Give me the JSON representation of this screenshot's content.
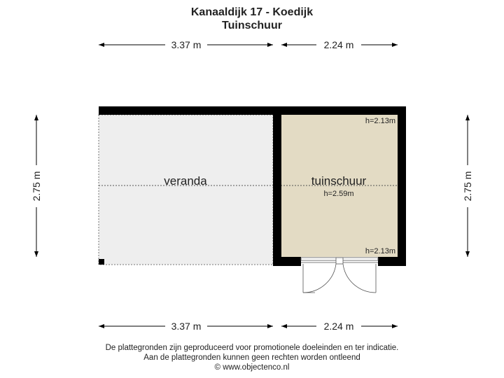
{
  "header": {
    "title": "Kanaaldijk 17 - Koedijk",
    "subtitle": "Tuinschuur"
  },
  "dimensions": {
    "top_left": "3.37 m",
    "top_right": "2.24 m",
    "bottom_left": "3.37 m",
    "bottom_right": "2.24 m",
    "left": "2.75 m",
    "right": "2.75 m"
  },
  "rooms": {
    "veranda": {
      "label": "veranda"
    },
    "tuinschuur": {
      "label": "tuinschuur",
      "height": "h=2.59m",
      "height_top": "h=2.13m",
      "height_bottom": "h=2.13m"
    }
  },
  "colors": {
    "wall": "#000000",
    "veranda_fill": "#eeeeee",
    "shed_fill": "#e3dbc4"
  },
  "footer": {
    "line1": "De plattegronden zijn geproduceerd voor promotionele doeleinden en ter indicatie.",
    "line2": "Aan de plattegronden kunnen geen rechten worden ontleend",
    "line3": "© www.objectenco.nl"
  }
}
